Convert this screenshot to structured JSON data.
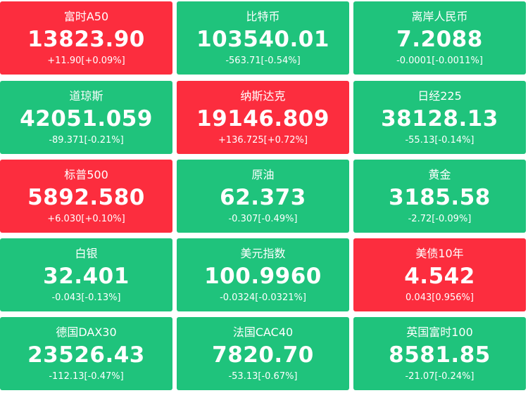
{
  "colors": {
    "up": "#fc2d3e",
    "down": "#1fc37c",
    "text": "#ffffff"
  },
  "tiles": [
    {
      "name": "富时A50",
      "price": "13823.90",
      "change": "+11.90[+0.09%]",
      "trend": "up"
    },
    {
      "name": "比特币",
      "price": "103540.01",
      "change": "-563.71[-0.54%]",
      "trend": "down"
    },
    {
      "name": "离岸人民币",
      "price": "7.2088",
      "change": "-0.0001[-0.0011%]",
      "trend": "down"
    },
    {
      "name": "道琼斯",
      "price": "42051.059",
      "change": "-89.371[-0.21%]",
      "trend": "down"
    },
    {
      "name": "纳斯达克",
      "price": "19146.809",
      "change": "+136.725[+0.72%]",
      "trend": "up"
    },
    {
      "name": "日经225",
      "price": "38128.13",
      "change": "-55.13[-0.14%]",
      "trend": "down"
    },
    {
      "name": "标普500",
      "price": "5892.580",
      "change": "+6.030[+0.10%]",
      "trend": "up"
    },
    {
      "name": "原油",
      "price": "62.373",
      "change": "-0.307[-0.49%]",
      "trend": "down"
    },
    {
      "name": "黄金",
      "price": "3185.58",
      "change": "-2.72[-0.09%]",
      "trend": "down"
    },
    {
      "name": "白银",
      "price": "32.401",
      "change": "-0.043[-0.13%]",
      "trend": "down"
    },
    {
      "name": "美元指数",
      "price": "100.9960",
      "change": "-0.0324[-0.0321%]",
      "trend": "down"
    },
    {
      "name": "美债10年",
      "price": "4.542",
      "change": "0.043[0.956%]",
      "trend": "up"
    },
    {
      "name": "德国DAX30",
      "price": "23526.43",
      "change": "-112.13[-0.47%]",
      "trend": "down"
    },
    {
      "name": "法国CAC40",
      "price": "7820.70",
      "change": "-53.13[-0.67%]",
      "trend": "down"
    },
    {
      "name": "英国富时100",
      "price": "8581.85",
      "change": "-21.07[-0.24%]",
      "trend": "down"
    }
  ]
}
